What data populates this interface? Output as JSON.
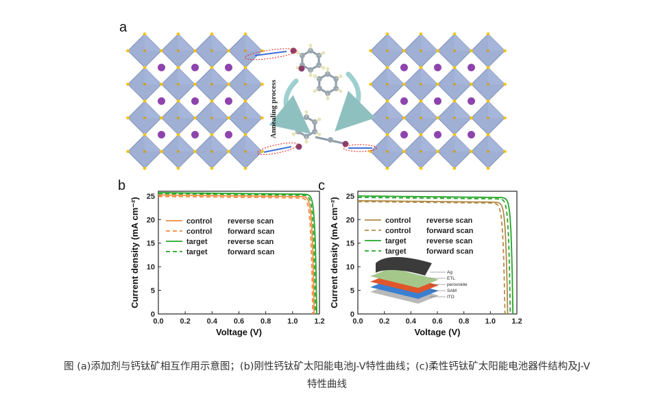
{
  "figure": {
    "panel_labels": {
      "a": "a",
      "b": "b",
      "c": "c"
    },
    "annealing_text": "Annealing process",
    "colors": {
      "control": "#f08a3c",
      "target": "#23a427",
      "control_c": "#b08a45",
      "target_c": "#23a427",
      "octahedron": "#7f95c6",
      "cation": "#8e44ad",
      "halide": "#f4c20d"
    },
    "inset_layers": [
      "Ag",
      "ETL",
      "perovskite",
      "SAM",
      "ITO"
    ]
  },
  "chart_data": [
    {
      "type": "line",
      "panel": "b",
      "xlabel": "Voltage (V)",
      "ylabel": "Current density (mA cm⁻²)",
      "xlim": [
        0.0,
        1.2
      ],
      "ylim": [
        0,
        26
      ],
      "xticks": [
        "0.0",
        "0.2",
        "0.4",
        "0.6",
        "0.8",
        "1.0",
        "1.2"
      ],
      "yticks": [
        "0",
        "5",
        "10",
        "15",
        "20",
        "25"
      ],
      "legend_position": "middle-left",
      "series": [
        {
          "name": "control",
          "scan": "reverse scan",
          "style": "solid",
          "color": "#f08a3c",
          "jsc": 25.2,
          "voc": 1.16,
          "vmp": 1.0
        },
        {
          "name": "control",
          "scan": "forward scan",
          "style": "dashed",
          "color": "#f08a3c",
          "jsc": 24.9,
          "voc": 1.15,
          "vmp": 0.98
        },
        {
          "name": "target",
          "scan": "reverse scan",
          "style": "solid",
          "color": "#23a427",
          "jsc": 25.7,
          "voc": 1.18,
          "vmp": 1.03
        },
        {
          "name": "target",
          "scan": "forward scan",
          "style": "dashed",
          "color": "#23a427",
          "jsc": 25.5,
          "voc": 1.17,
          "vmp": 1.01
        }
      ]
    },
    {
      "type": "line",
      "panel": "c",
      "xlabel": "Voltage (V)",
      "ylabel": "Current density (mA cm⁻²)",
      "xlim": [
        0.0,
        1.2
      ],
      "ylim": [
        0,
        26
      ],
      "xticks": [
        "0.0",
        "0.2",
        "0.4",
        "0.6",
        "0.8",
        "1.0",
        "1.2"
      ],
      "yticks": [
        "0",
        "5",
        "10",
        "15",
        "20",
        "25"
      ],
      "legend_position": "top-right",
      "series": [
        {
          "name": "control",
          "scan": "reverse scan",
          "style": "solid",
          "color": "#b08a45",
          "jsc": 24.0,
          "voc": 1.13,
          "vmp": 0.96
        },
        {
          "name": "control",
          "scan": "forward scan",
          "style": "dashed",
          "color": "#b08a45",
          "jsc": 23.8,
          "voc": 1.11,
          "vmp": 0.93
        },
        {
          "name": "target",
          "scan": "reverse scan",
          "style": "solid",
          "color": "#23a427",
          "jsc": 25.0,
          "voc": 1.17,
          "vmp": 1.02
        },
        {
          "name": "target",
          "scan": "forward scan",
          "style": "dashed",
          "color": "#23a427",
          "jsc": 24.7,
          "voc": 1.15,
          "vmp": 1.0
        }
      ]
    }
  ],
  "caption": {
    "line1": "图 (a)添加剂与钙钛矿相互作用示意图；(b)刚性钙钛矿太阳能电池J-V特性曲线；(c)柔性钙钛矿太阳能电池器件结构及J-V",
    "line2": "特性曲线"
  }
}
